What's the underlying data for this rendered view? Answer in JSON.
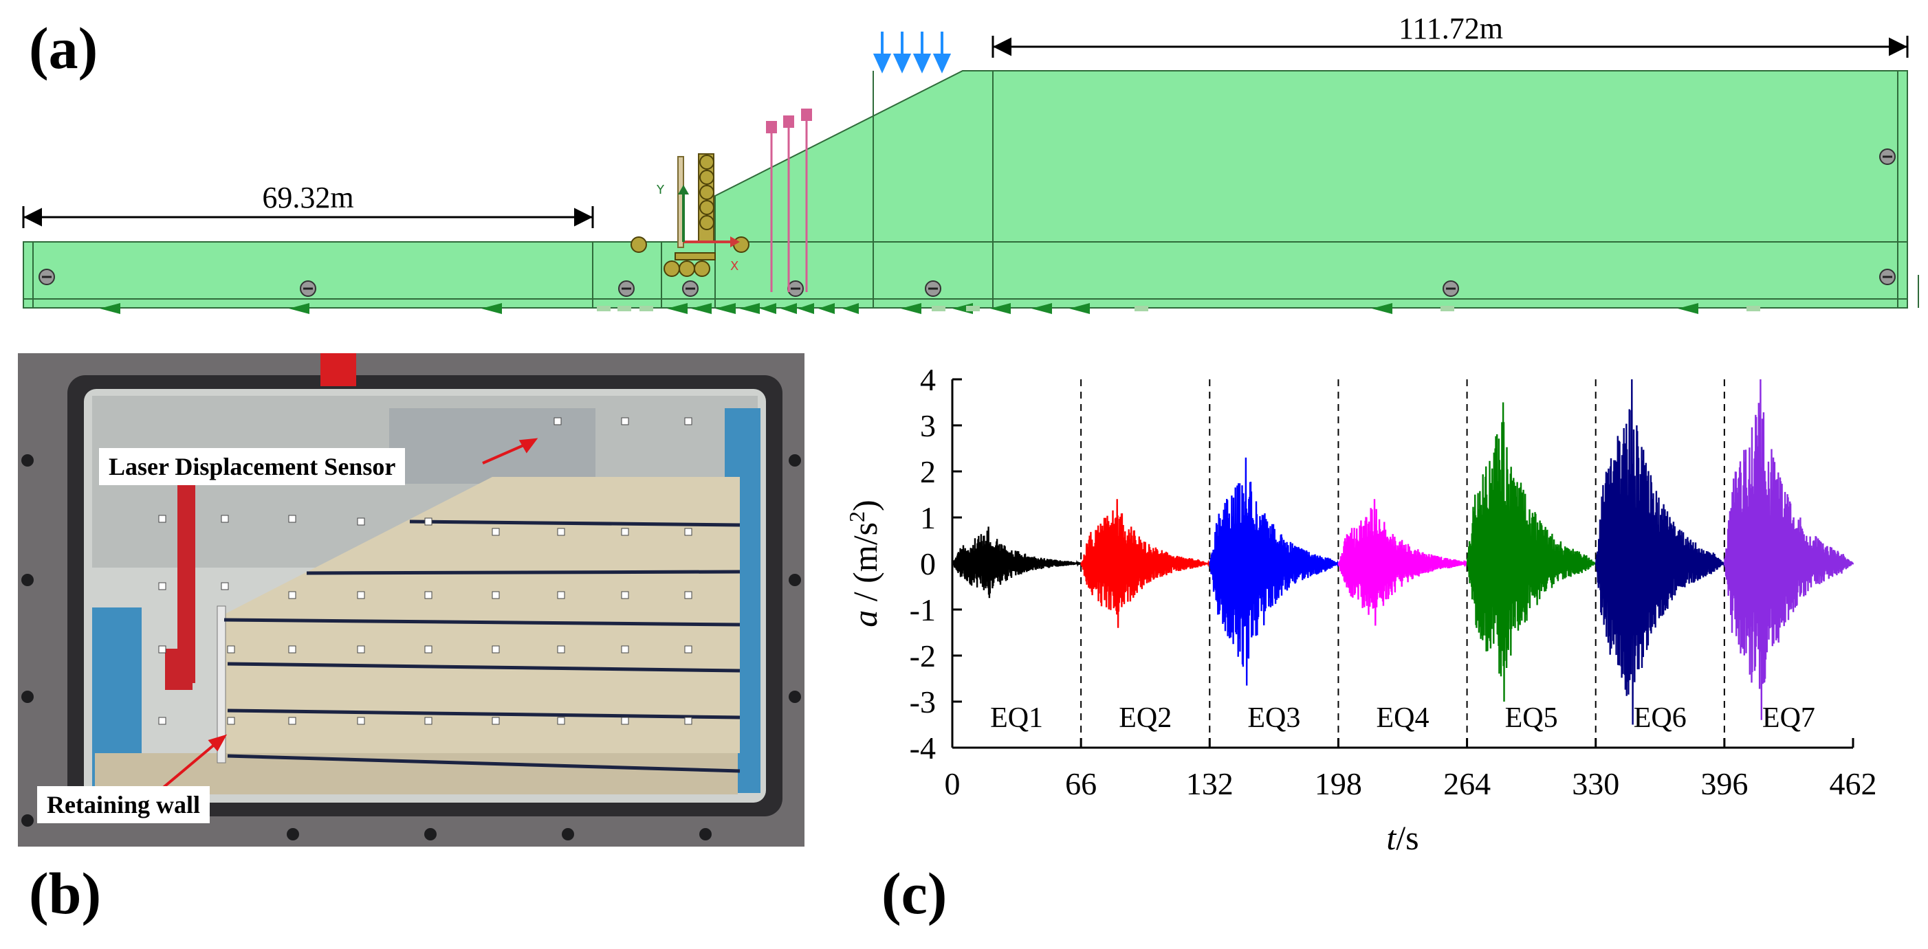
{
  "figure": {
    "panel_a_label": "(a)",
    "panel_b_label": "(b)",
    "panel_c_label": "(c)"
  },
  "model": {
    "left_dimension": "69.32m",
    "right_dimension": "111.72m",
    "axis_y": "Y",
    "axis_x": "X",
    "colors": {
      "soil": "#88e9a0",
      "outline": "#2f6b3a",
      "load": "#1e8fff",
      "anchor": "#d45f93",
      "wall": "#9a8a28"
    }
  },
  "photo": {
    "sensor_label": "Laser Displacement Sensor",
    "wall_label": "Retaining wall",
    "colors": {
      "frame": "#3b3a3d",
      "sand": "#d9cfb3",
      "arrow": "#e0161b"
    }
  },
  "chart_data": {
    "type": "line",
    "title": "",
    "xlabel_italic": "t",
    "xlabel_unit": "/s",
    "ylabel_italic": "a",
    "ylabel_unit": " / (m/s",
    "ylabel_sup": "2",
    "ylabel_close": ")",
    "xlim": [
      0,
      462
    ],
    "ylim": [
      -4,
      4
    ],
    "xticks": [
      0,
      66,
      132,
      198,
      264,
      330,
      396,
      462
    ],
    "yticks": [
      -4,
      -3,
      -2,
      -1,
      0,
      1,
      2,
      3,
      4
    ],
    "grid": false,
    "dividers": [
      66,
      132,
      198,
      264,
      330,
      396
    ],
    "series": [
      {
        "name": "EQ1",
        "start": 0,
        "end": 66,
        "peak_max": 0.8,
        "peak_min": -0.75,
        "color": "#000000"
      },
      {
        "name": "EQ2",
        "start": 66,
        "end": 132,
        "peak_max": 1.4,
        "peak_min": -1.4,
        "color": "#ff0000"
      },
      {
        "name": "EQ3",
        "start": 132,
        "end": 198,
        "peak_max": 2.3,
        "peak_min": -2.65,
        "color": "#0000ff"
      },
      {
        "name": "EQ4",
        "start": 198,
        "end": 264,
        "peak_max": 1.4,
        "peak_min": -1.35,
        "color": "#ff00ff"
      },
      {
        "name": "EQ5",
        "start": 264,
        "end": 330,
        "peak_max": 3.5,
        "peak_min": -3.0,
        "color": "#008000"
      },
      {
        "name": "EQ6",
        "start": 330,
        "end": 396,
        "peak_max": 4.0,
        "peak_min": -3.5,
        "color": "#00007f"
      },
      {
        "name": "EQ7",
        "start": 396,
        "end": 462,
        "peak_max": 4.0,
        "peak_min": -3.4,
        "color": "#8b2be2"
      }
    ]
  }
}
